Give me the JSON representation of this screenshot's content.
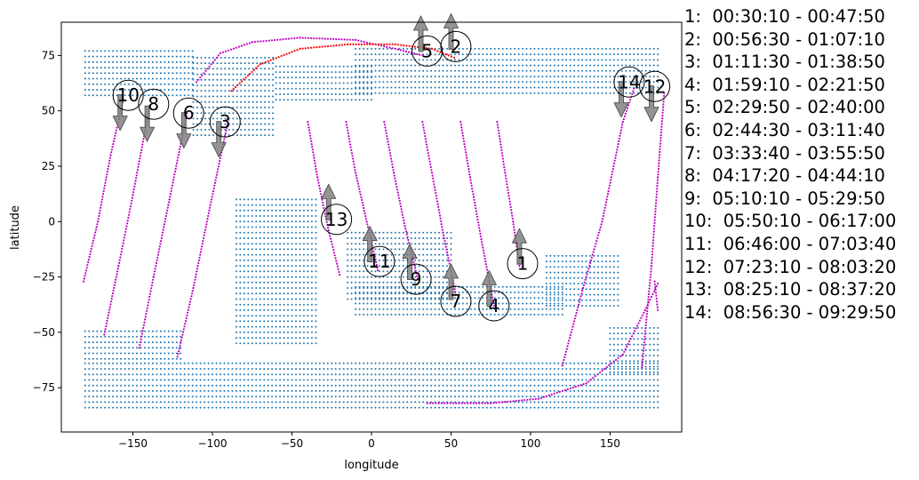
{
  "chart_data": {
    "type": "scatter",
    "xlabel": "longitude",
    "ylabel": "latitude",
    "xlim": [
      -195,
      195
    ],
    "ylim": [
      -95,
      90
    ],
    "xticks": [
      -150,
      -100,
      -50,
      0,
      50,
      100,
      150
    ],
    "yticks": [
      -75,
      -50,
      -25,
      0,
      25,
      50,
      75
    ],
    "grid": false,
    "colors": {
      "land": "#1f77b4",
      "track": "#c000c0",
      "highlight": "#ff0000",
      "arrow": "#808080"
    },
    "legend_placement": "right, outside",
    "passes": [
      {
        "id": "1",
        "label": "1:  00:30:10 - 00:47:50"
      },
      {
        "id": "2",
        "label": "2:  00:56:30 - 01:07:10"
      },
      {
        "id": "3",
        "label": "3:  01:11:30 - 01:38:50"
      },
      {
        "id": "4",
        "label": "4:  01:59:10 - 02:21:50"
      },
      {
        "id": "5",
        "label": "5:  02:29:50 - 02:40:00"
      },
      {
        "id": "6",
        "label": "6:  02:44:30 - 03:11:40"
      },
      {
        "id": "7",
        "label": "7:  03:33:40 - 03:55:50"
      },
      {
        "id": "8",
        "label": "8:  04:17:20 - 04:44:10"
      },
      {
        "id": "9",
        "label": "9:  05:10:10 - 05:29:50"
      },
      {
        "id": "10",
        "label": "10:  05:50:10 - 06:17:00"
      },
      {
        "id": "11",
        "label": "11:  06:46:00 - 07:03:40"
      },
      {
        "id": "12",
        "label": "12:  07:23:10 - 08:03:20"
      },
      {
        "id": "13",
        "label": "13:  08:25:10 - 08:37:20"
      },
      {
        "id": "14",
        "label": "14:  08:56:30 - 09:29:50"
      }
    ],
    "tracks": [
      {
        "pts": [
          [
            -181,
            -27
          ],
          [
            -172,
            0
          ],
          [
            -164,
            30
          ],
          [
            -156,
            55
          ]
        ]
      },
      {
        "pts": [
          [
            -168,
            -51
          ],
          [
            -159,
            -20
          ],
          [
            -150,
            12
          ],
          [
            -140,
            50
          ]
        ]
      },
      {
        "pts": [
          [
            -146,
            -57
          ],
          [
            -137,
            -25
          ],
          [
            -127,
            10
          ],
          [
            -116,
            49
          ]
        ]
      },
      {
        "pts": [
          [
            -122,
            -61
          ],
          [
            -112,
            -30
          ],
          [
            -102,
            5
          ],
          [
            -90,
            46
          ]
        ]
      },
      {
        "pts": [
          [
            -40,
            45
          ],
          [
            -34,
            20
          ],
          [
            -27,
            -4
          ],
          [
            -20,
            -24
          ]
        ]
      },
      {
        "pts": [
          [
            -16,
            45
          ],
          [
            -10,
            22
          ],
          [
            -3,
            0
          ],
          [
            4,
            -22
          ]
        ]
      },
      {
        "pts": [
          [
            8,
            45
          ],
          [
            14,
            22
          ],
          [
            21,
            -2
          ],
          [
            29,
            -26
          ]
        ]
      },
      {
        "pts": [
          [
            32,
            45
          ],
          [
            38,
            22
          ],
          [
            45,
            -5
          ],
          [
            53,
            -33
          ]
        ]
      },
      {
        "pts": [
          [
            56,
            45
          ],
          [
            62,
            20
          ],
          [
            69,
            -8
          ],
          [
            77,
            -38
          ]
        ]
      },
      {
        "pts": [
          [
            79,
            45
          ],
          [
            84,
            22
          ],
          [
            89,
            0
          ],
          [
            93,
            -20
          ]
        ]
      },
      {
        "pts": [
          [
            120,
            -65
          ],
          [
            133,
            -30
          ],
          [
            145,
            0
          ],
          [
            158,
            45
          ],
          [
            165,
            60
          ]
        ]
      },
      {
        "pts": [
          [
            170,
            -66
          ],
          [
            176,
            -20
          ],
          [
            180,
            20
          ],
          [
            184,
            58
          ]
        ]
      },
      {
        "pts": [
          [
            178,
            -27
          ],
          [
            180,
            -40
          ]
        ]
      },
      {
        "pts": [
          [
            -110,
            63
          ],
          [
            -95,
            76
          ],
          [
            -75,
            81
          ],
          [
            -45,
            83
          ],
          [
            -10,
            82
          ],
          [
            15,
            78
          ],
          [
            32,
            75
          ]
        ]
      },
      {
        "pts": [
          [
            35,
            -82
          ],
          [
            75,
            -82
          ],
          [
            105,
            -80
          ],
          [
            135,
            -73
          ],
          [
            158,
            -60
          ],
          [
            172,
            -40
          ],
          [
            180,
            -28
          ]
        ]
      }
    ],
    "highlight_track": [
      [
        -88,
        59
      ],
      [
        -70,
        71
      ],
      [
        -45,
        78
      ],
      [
        -15,
        80
      ],
      [
        15,
        80
      ],
      [
        38,
        78
      ],
      [
        52,
        74
      ]
    ],
    "markers": [
      {
        "id": "1",
        "x": 95,
        "y": -19,
        "arrow": "up",
        "ax": 93,
        "ay": -12
      },
      {
        "id": "2",
        "x": 53,
        "y": 79,
        "arrow": "up",
        "ax": 50,
        "ay": 85
      },
      {
        "id": "3",
        "x": -92,
        "y": 45,
        "arrow": "down",
        "ax": -96,
        "ay": 38
      },
      {
        "id": "4",
        "x": 77,
        "y": -38,
        "arrow": "up",
        "ax": 74,
        "ay": -31
      },
      {
        "id": "5",
        "x": 35,
        "y": 77,
        "arrow": "up",
        "ax": 31,
        "ay": 84
      },
      {
        "id": "6",
        "x": -115,
        "y": 49,
        "arrow": "down",
        "ax": -118,
        "ay": 42
      },
      {
        "id": "7",
        "x": 53,
        "y": -36,
        "arrow": "up",
        "ax": 50,
        "ay": -28
      },
      {
        "id": "8",
        "x": -137,
        "y": 53,
        "arrow": "down",
        "ax": -141,
        "ay": 45
      },
      {
        "id": "9",
        "x": 28,
        "y": -26,
        "arrow": "up",
        "ax": 24,
        "ay": -19
      },
      {
        "id": "10",
        "x": -153,
        "y": 57,
        "arrow": "down",
        "ax": -158,
        "ay": 50
      },
      {
        "id": "11",
        "x": 5,
        "y": -18,
        "arrow": "up",
        "ax": -1,
        "ay": -11
      },
      {
        "id": "12",
        "x": 178,
        "y": 61,
        "arrow": "down",
        "ax": 176,
        "ay": 54
      },
      {
        "id": "13",
        "x": -22,
        "y": 1,
        "arrow": "up",
        "ax": -27,
        "ay": 8
      },
      {
        "id": "14",
        "x": 162,
        "y": 63,
        "arrow": "down",
        "ax": 157,
        "ay": 56
      }
    ],
    "land_regions": [
      {
        "lon": [
          -180,
          -112
        ],
        "lat": [
          57,
          77
        ]
      },
      {
        "lon": [
          -112,
          -60
        ],
        "lat": [
          39,
          74
        ]
      },
      {
        "lon": [
          -60,
          0
        ],
        "lat": [
          55,
          70
        ]
      },
      {
        "lon": [
          -10,
          180
        ],
        "lat": [
          58,
          78
        ]
      },
      {
        "lon": [
          -85,
          -35
        ],
        "lat": [
          -55,
          12
        ]
      },
      {
        "lon": [
          -15,
          50
        ],
        "lat": [
          -35,
          -5
        ]
      },
      {
        "lon": [
          -10,
          120
        ],
        "lat": [
          -42,
          -28
        ]
      },
      {
        "lon": [
          110,
          155
        ],
        "lat": [
          -38,
          -15
        ]
      },
      {
        "lon": [
          -180,
          180
        ],
        "lat": [
          -84,
          -62
        ]
      },
      {
        "lon": [
          -180,
          -120
        ],
        "lat": [
          -62,
          -48
        ]
      },
      {
        "lon": [
          150,
          180
        ],
        "lat": [
          -68,
          -46
        ]
      }
    ]
  }
}
